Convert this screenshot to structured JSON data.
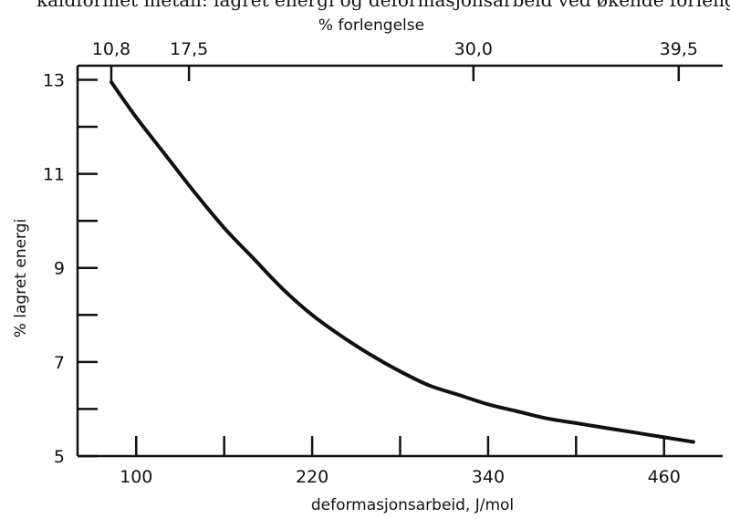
{
  "caption_fragment": "kaldformet metall: lagret energi og deformasjonsarbeid ved økende forlengelse",
  "chart_data": {
    "type": "line",
    "xlabel": "deformasjonsarbeid, J/mol",
    "ylabel": "% lagret energi",
    "top_axis_label": "% forlengelse",
    "xlim": [
      60,
      500
    ],
    "ylim": [
      5,
      13.3
    ],
    "x_ticks": [
      100,
      220,
      340,
      460
    ],
    "x_minor_ticks": [
      160,
      280,
      400
    ],
    "y_ticks": [
      5,
      7,
      9,
      11,
      13
    ],
    "y_minor_ticks": [
      6,
      8,
      10,
      12
    ],
    "top_ticks": [
      {
        "x": 83,
        "label": "10,8"
      },
      {
        "x": 136,
        "label": "17,5"
      },
      {
        "x": 330,
        "label": "30,0"
      },
      {
        "x": 470,
        "label": "39,5"
      }
    ],
    "series": [
      {
        "x": [
          83,
          100,
          120,
          140,
          160,
          180,
          200,
          220,
          240,
          260,
          280,
          300,
          320,
          340,
          360,
          380,
          400,
          420,
          440,
          460,
          480
        ],
        "y": [
          12.95,
          12.2,
          11.4,
          10.6,
          9.85,
          9.2,
          8.55,
          8.0,
          7.55,
          7.15,
          6.8,
          6.5,
          6.3,
          6.1,
          5.95,
          5.8,
          5.7,
          5.6,
          5.5,
          5.4,
          5.3
        ]
      }
    ]
  }
}
